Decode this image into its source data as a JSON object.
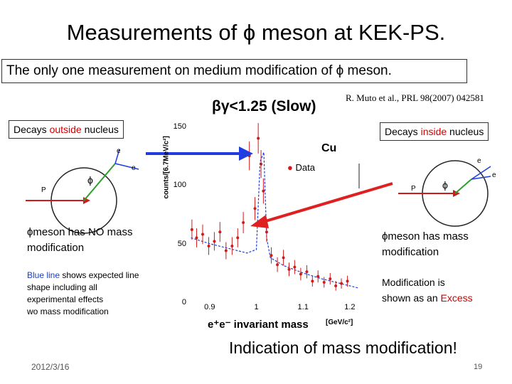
{
  "title": "Measurements of ϕ meson at KEK-PS.",
  "subtitle": "The only one measurement on medium modification of ϕ meson.",
  "speed_label": "βγ<1.25 (Slow)",
  "reference": "R. Muto et al., PRL 98(2007) 042581",
  "left_callout": {
    "pre": "Decays ",
    "highlight": "outside",
    "post": " nucleus"
  },
  "right_callout": {
    "pre": "Decays ",
    "highlight": "inside",
    "post": " nucleus"
  },
  "left_text": {
    "line1": "ϕmeson has NO mass",
    "line2": "modification"
  },
  "blue_note": {
    "highlight": "Blue line",
    "rest": " shows expected line",
    "line2": "shape including all",
    "line3": "experimental effects",
    "line4": "wo  mass modification"
  },
  "right_text": {
    "line1": "ϕmeson has mass",
    "line2": "modification"
  },
  "excess_note": {
    "line1": "Modification is",
    "line2_pre": "shown as an ",
    "line2_hl": "Excess"
  },
  "indication": "Indication of  mass modification!",
  "footer_date": "2012/3/16",
  "page_number": "19",
  "diagram_labels": {
    "particle_p": "P",
    "phi": "ϕ",
    "electron": "e",
    "positron": "e"
  },
  "colors": {
    "highlight_red": "#d20000",
    "blue_text": "#1a3fc7",
    "arrow_blue": "#1f3de0",
    "arrow_red": "#e02020",
    "diagram_red": "#d21a1a",
    "diagram_green": "#2ca02c",
    "diagram_blue": "#1f3de0"
  },
  "chart_data": {
    "type": "scatter",
    "target_label": "Cu",
    "legend": "Data",
    "ylabel": "counts/[6.7MeV/c²]",
    "xlabel": "e⁺e⁻ invariant mass",
    "xunit": "[GeV/c²]",
    "xlim": [
      0.85,
      1.22
    ],
    "ylim": [
      0,
      150
    ],
    "x_ticks": [
      "0.9",
      "1",
      "1.1",
      "1.2"
    ],
    "y_ticks": [
      "0",
      "50",
      "100",
      "150"
    ],
    "series": [
      {
        "name": "Data",
        "x": [
          0.862,
          0.872,
          0.885,
          0.898,
          0.91,
          0.922,
          0.935,
          0.948,
          0.96,
          0.972,
          0.985,
          0.997,
          1.004,
          1.01,
          1.015,
          1.022,
          1.032,
          1.045,
          1.058,
          1.07,
          1.082,
          1.095,
          1.108,
          1.12,
          1.132,
          1.145,
          1.158,
          1.17,
          1.182,
          1.195
        ],
        "y": [
          62,
          55,
          58,
          48,
          52,
          60,
          44,
          48,
          55,
          68,
          125,
          80,
          140,
          118,
          95,
          60,
          40,
          32,
          38,
          28,
          30,
          24,
          26,
          18,
          22,
          17,
          20,
          14,
          16,
          18
        ]
      },
      {
        "name": "Expected shape",
        "x": [
          0.86,
          0.9,
          0.94,
          0.98,
          1.0,
          1.008,
          1.016,
          1.022,
          1.03,
          1.06,
          1.1,
          1.14,
          1.18,
          1.22
        ],
        "y": [
          55,
          50,
          46,
          42,
          45,
          120,
          128,
          55,
          38,
          31,
          25,
          20,
          16,
          12
        ]
      }
    ]
  }
}
